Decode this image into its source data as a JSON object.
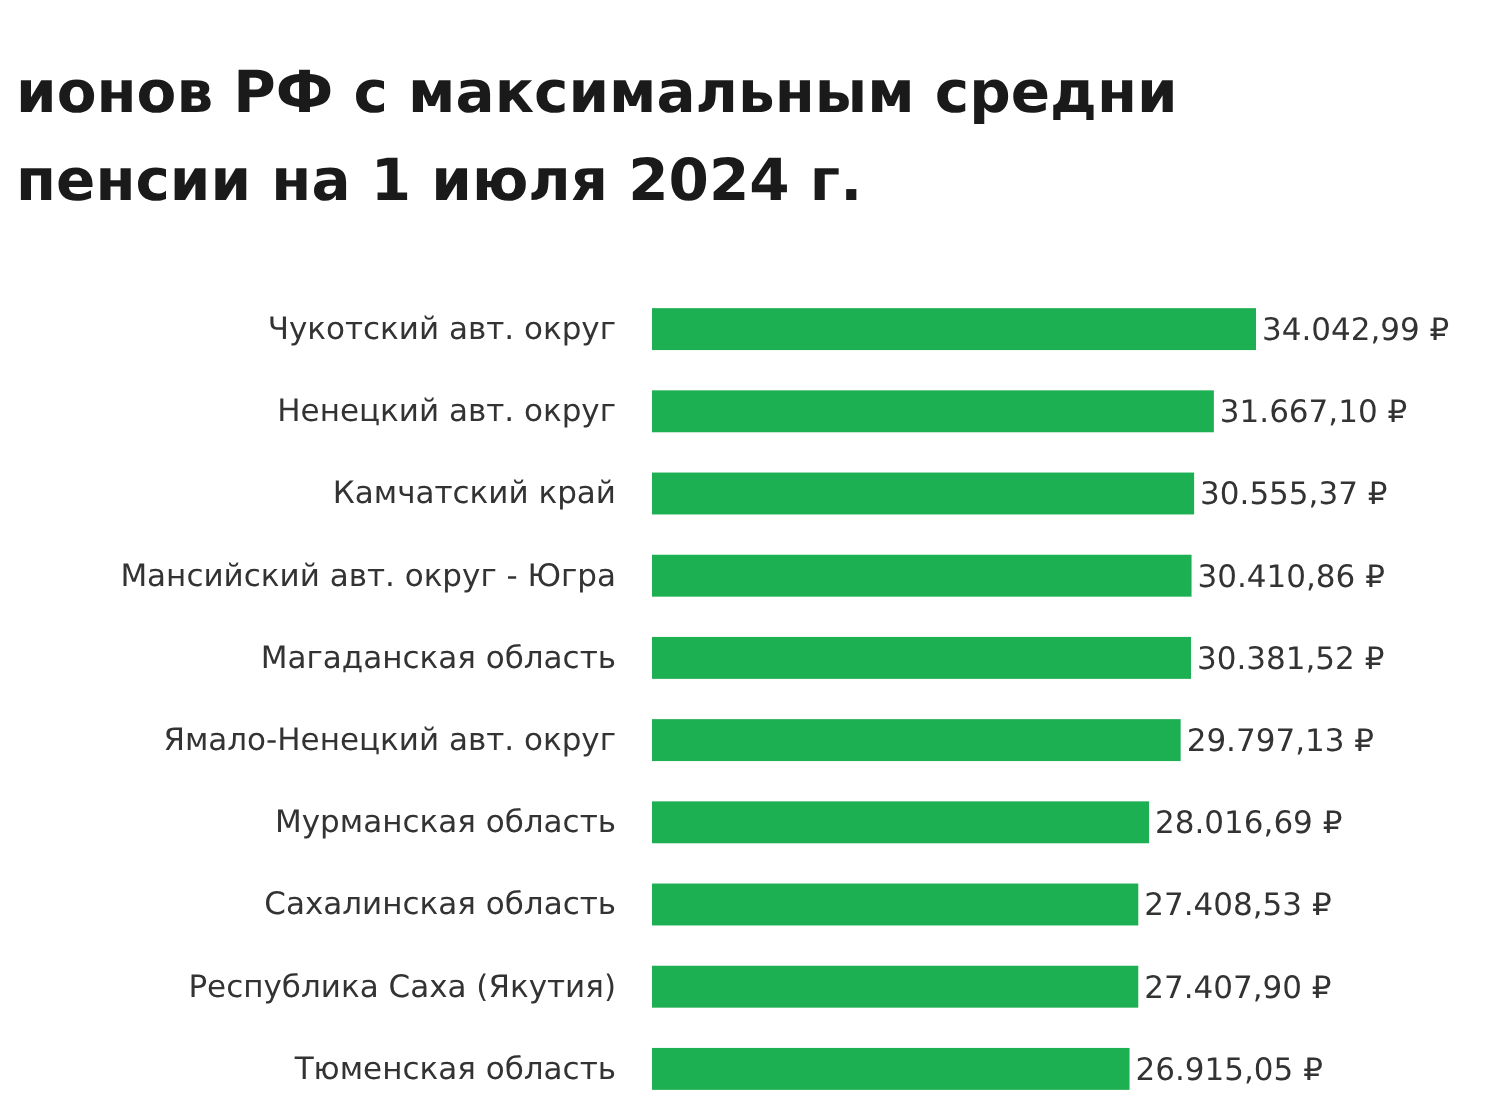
{
  "chart_data": {
    "type": "bar",
    "orientation": "horizontal",
    "title": "ионов РФ с максимальным средни пенсии на 1 июля 2024 г.",
    "categories": [
      "Чукотский авт. округ",
      "Ненецкий авт. округ",
      "Камчатский край",
      "Мансийский авт. округ - Югра",
      "Магаданская область",
      "Ямало-Ненецкий авт. округ",
      "Мурманская область",
      "Сахалинская область",
      "Республика Саха (Якутия)",
      "Тюменская область"
    ],
    "values": [
      34042.99,
      31667.1,
      30555.37,
      30410.86,
      30381.52,
      29797.13,
      28016.69,
      27408.53,
      27407.9,
      26915.05
    ],
    "color": "#1db052",
    "value_labels": [
      "34.042,99 ₽",
      "31.667,10 ₽",
      "30.555,37 ₽",
      "30.410,86 ₽",
      "30.381,52 ₽",
      "29.797,13 ₽",
      "28.016,69 ₽",
      "27.408,53 ₽",
      "27.407,90 ₽",
      "26.915,05 ₽"
    ]
  }
}
